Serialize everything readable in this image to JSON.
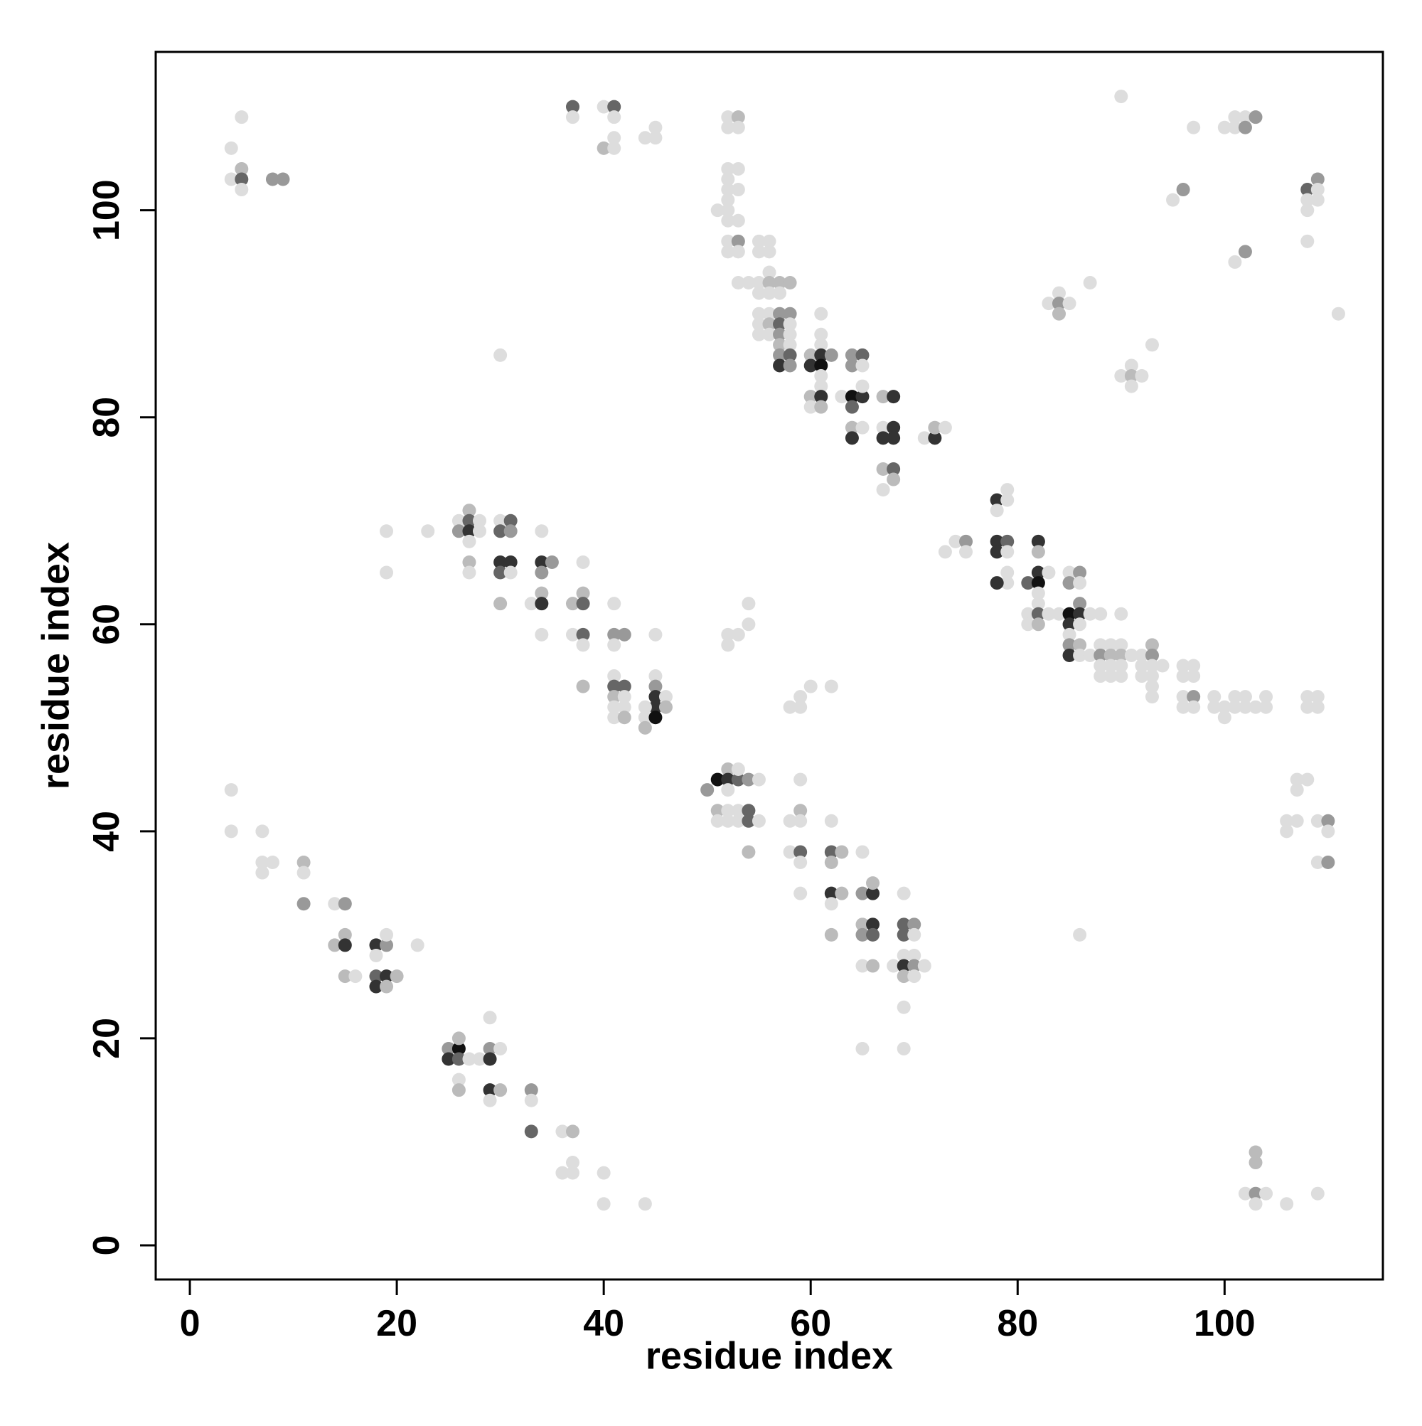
{
  "chart_data": {
    "type": "scatter",
    "xlabel": "residue index",
    "ylabel": "residue index",
    "xlim": [
      -3.3,
      115.3
    ],
    "ylim": [
      -3.3,
      115.3
    ],
    "xticks": [
      0,
      20,
      40,
      60,
      80,
      100
    ],
    "yticks": [
      0,
      20,
      40,
      60,
      80,
      100
    ],
    "x": [
      4,
      4,
      5,
      5,
      5,
      5,
      8,
      9,
      37,
      37,
      40,
      41,
      41,
      40,
      41,
      41,
      44,
      45,
      45,
      52,
      53,
      52,
      53,
      52,
      53,
      52,
      52,
      53,
      51,
      52,
      52,
      52,
      53,
      52,
      53,
      52,
      53,
      53,
      54,
      55,
      55,
      56,
      56,
      56,
      55,
      56,
      57,
      58,
      55,
      56,
      57,
      55,
      56,
      57,
      58,
      55,
      56,
      57,
      58,
      55,
      56,
      57,
      58,
      57,
      58,
      57,
      58,
      57,
      58,
      61,
      61,
      61,
      60,
      61,
      62,
      60,
      61,
      61,
      61,
      60,
      61,
      63,
      64,
      65,
      60,
      61,
      64,
      64,
      65,
      64,
      65,
      65,
      64,
      65,
      64,
      67,
      68,
      67,
      68,
      67,
      68,
      67,
      68,
      68,
      67,
      71,
      72,
      72,
      73,
      90,
      97,
      100,
      101,
      101,
      102,
      102,
      103,
      95,
      96,
      101,
      102,
      108,
      108,
      109,
      109,
      109,
      108,
      108,
      111,
      83,
      84,
      84,
      84,
      85,
      87,
      90,
      91,
      91,
      92,
      91,
      93,
      30,
      19,
      19,
      23,
      26,
      26,
      27,
      27,
      27,
      28,
      28,
      27,
      27,
      27,
      30,
      31,
      30,
      31,
      30,
      31,
      30,
      31,
      30,
      34,
      34,
      35,
      34,
      34,
      33,
      34,
      38,
      38,
      37,
      38,
      37,
      38,
      38,
      34,
      38,
      41,
      41,
      42,
      41,
      41,
      41,
      42,
      41,
      42,
      41,
      42,
      41,
      42,
      45,
      45,
      45,
      45,
      46,
      45,
      46,
      44,
      44,
      45,
      44,
      52,
      53,
      52,
      54,
      54,
      73,
      74,
      75,
      75,
      78,
      79,
      79,
      78,
      78,
      79,
      78,
      79,
      79,
      79,
      78,
      81,
      82,
      82,
      82,
      83,
      82,
      82,
      82,
      81,
      82,
      81,
      82,
      83,
      84,
      85,
      86,
      85,
      86,
      86,
      85,
      86,
      85,
      86,
      85,
      87,
      88,
      85,
      86,
      85,
      86,
      87,
      88,
      88,
      89,
      89,
      90,
      90,
      88,
      89,
      90,
      88,
      89,
      90,
      90,
      91,
      92,
      92,
      92,
      93,
      93,
      93,
      93,
      93,
      93,
      94,
      96,
      97,
      96,
      97,
      96,
      97,
      96,
      97,
      99,
      99,
      100,
      100,
      101,
      101,
      102,
      102,
      103,
      104,
      104,
      108,
      109,
      108,
      109,
      58,
      59,
      59,
      60,
      62,
      50,
      51,
      52,
      52,
      53,
      53,
      54,
      55,
      52,
      51,
      52,
      53,
      54,
      51,
      52,
      53,
      54,
      55,
      54,
      58,
      59,
      59,
      59,
      58,
      59,
      59,
      59,
      62,
      62,
      63,
      62,
      62,
      63,
      62,
      62,
      65,
      65,
      66,
      66,
      65,
      66,
      65,
      66,
      65,
      66,
      69,
      69,
      70,
      69,
      70,
      69,
      70,
      68,
      69,
      70,
      71,
      69,
      70,
      69,
      69,
      65,
      86,
      4,
      4,
      7,
      7,
      8,
      7,
      11,
      11,
      11,
      14,
      15,
      15,
      14,
      15,
      15,
      16,
      18,
      19,
      19,
      18,
      18,
      19,
      20,
      18,
      19,
      22,
      25,
      26,
      26,
      25,
      26,
      27,
      26,
      26,
      28,
      29,
      30,
      29,
      29,
      29,
      30,
      29,
      33,
      33,
      33,
      36,
      37,
      36,
      37,
      37,
      40,
      40,
      44,
      107,
      108,
      107,
      106,
      107,
      106,
      109,
      110,
      110,
      109,
      110,
      103,
      103,
      102,
      103,
      104,
      103,
      106,
      109
    ],
    "values": [
      106,
      103,
      104,
      103,
      102,
      109,
      103,
      103,
      110,
      109,
      110,
      110,
      109,
      106,
      107,
      106,
      107,
      108,
      107,
      109,
      109,
      108,
      108,
      104,
      104,
      103,
      102,
      102,
      100,
      100,
      101,
      99,
      99,
      97,
      97,
      96,
      96,
      93,
      93,
      96,
      97,
      97,
      96,
      94,
      93,
      93,
      93,
      93,
      92,
      92,
      92,
      90,
      90,
      90,
      90,
      89,
      89,
      89,
      89,
      88,
      88,
      88,
      88,
      87,
      87,
      86,
      86,
      85,
      85,
      90,
      88,
      87,
      86,
      86,
      86,
      85,
      85,
      84,
      83,
      82,
      82,
      82,
      82,
      82,
      81,
      81,
      81,
      86,
      86,
      85,
      85,
      83,
      79,
      79,
      78,
      82,
      82,
      79,
      79,
      78,
      78,
      75,
      75,
      74,
      73,
      78,
      78,
      79,
      79,
      111,
      108,
      108,
      109,
      108,
      109,
      108,
      109,
      101,
      102,
      95,
      96,
      102,
      101,
      103,
      102,
      101,
      100,
      97,
      90,
      91,
      92,
      91,
      90,
      91,
      93,
      84,
      85,
      84,
      84,
      83,
      87,
      86,
      69,
      65,
      69,
      70,
      69,
      71,
      70,
      69,
      70,
      69,
      68,
      66,
      65,
      70,
      70,
      69,
      69,
      66,
      66,
      65,
      65,
      62,
      69,
      66,
      66,
      65,
      63,
      62,
      62,
      66,
      63,
      62,
      62,
      59,
      59,
      58,
      59,
      54,
      62,
      59,
      59,
      58,
      55,
      54,
      54,
      53,
      53,
      52,
      52,
      51,
      51,
      59,
      55,
      54,
      53,
      53,
      52,
      52,
      52,
      51,
      51,
      50,
      59,
      59,
      58,
      62,
      60,
      67,
      68,
      68,
      67,
      72,
      73,
      72,
      71,
      68,
      68,
      67,
      67,
      65,
      64,
      64,
      64,
      68,
      67,
      65,
      65,
      64,
      63,
      62,
      61,
      61,
      60,
      60,
      61,
      61,
      65,
      65,
      64,
      64,
      62,
      61,
      61,
      60,
      60,
      59,
      61,
      61,
      58,
      58,
      57,
      57,
      57,
      58,
      57,
      58,
      57,
      58,
      57,
      56,
      56,
      56,
      55,
      55,
      55,
      61,
      57,
      57,
      56,
      55,
      58,
      57,
      56,
      55,
      54,
      53,
      56,
      56,
      56,
      55,
      55,
      53,
      53,
      52,
      52,
      53,
      52,
      52,
      51,
      53,
      52,
      53,
      52,
      52,
      53,
      52,
      53,
      53,
      52,
      52,
      52,
      53,
      52,
      54,
      54,
      44,
      45,
      46,
      45,
      45,
      46,
      45,
      45,
      44,
      42,
      42,
      42,
      42,
      41,
      41,
      41,
      41,
      41,
      38,
      41,
      42,
      41,
      45,
      38,
      38,
      37,
      34,
      41,
      38,
      38,
      37,
      34,
      34,
      33,
      30,
      38,
      34,
      34,
      35,
      31,
      31,
      30,
      30,
      27,
      27,
      34,
      31,
      31,
      30,
      30,
      28,
      28,
      27,
      27,
      27,
      27,
      26,
      26,
      23,
      19,
      19,
      30,
      44,
      40,
      40,
      37,
      37,
      36,
      37,
      36,
      33,
      33,
      33,
      30,
      29,
      29,
      26,
      26,
      29,
      29,
      30,
      28,
      26,
      26,
      26,
      25,
      25,
      29,
      19,
      19,
      20,
      18,
      18,
      18,
      16,
      15,
      18,
      19,
      19,
      18,
      22,
      15,
      15,
      14,
      15,
      14,
      11,
      11,
      11,
      7,
      7,
      8,
      7,
      4,
      4,
      45,
      45,
      44,
      41,
      41,
      40,
      41,
      41,
      40,
      37,
      37,
      9,
      8,
      5,
      5,
      5,
      4,
      4,
      5
    ],
    "colors": [
      "#ddd",
      "#ddd",
      "#bbb",
      "#666",
      "#ddd",
      "#ddd",
      "#999",
      "#999",
      "#666",
      "#ddd",
      "#ddd",
      "#666",
      "#ddd",
      "#bbb",
      "#ddd",
      "#ddd",
      "#ddd",
      "#ddd",
      "#ddd",
      "#ddd",
      "#bbb",
      "#ddd",
      "#ddd",
      "#ddd",
      "#ddd",
      "#ddd",
      "#ddd",
      "#ddd",
      "#ddd",
      "#ddd",
      "#ddd",
      "#ddd",
      "#ddd",
      "#ddd",
      "#999",
      "#ddd",
      "#ddd",
      "#ddd",
      "#ddd",
      "#ddd",
      "#ddd",
      "#ddd",
      "#ddd",
      "#ddd",
      "#ddd",
      "#bbb",
      "#bbb",
      "#bbb",
      "#ddd",
      "#ddd",
      "#ddd",
      "#ddd",
      "#ddd",
      "#999",
      "#999",
      "#ddd",
      "#bbb",
      "#666",
      "#ddd",
      "#ddd",
      "#ddd",
      "#999",
      "#ddd",
      "#bbb",
      "#ddd",
      "#999",
      "#666",
      "#333",
      "#999",
      "#ddd",
      "#ddd",
      "#ddd",
      "#bbb",
      "#333",
      "#999",
      "#333",
      "#111",
      "#ddd",
      "#ddd",
      "#bbb",
      "#333",
      "#ddd",
      "#111",
      "#333",
      "#ddd",
      "#bbb",
      "#666",
      "#999",
      "#666",
      "#999",
      "#ddd",
      "#ddd",
      "#bbb",
      "#ddd",
      "#333",
      "#bbb",
      "#333",
      "#ddd",
      "#333",
      "#333",
      "#333",
      "#bbb",
      "#666",
      "#bbb",
      "#ddd",
      "#ddd",
      "#333",
      "#bbb",
      "#ddd",
      "#ddd",
      "#ddd",
      "#ddd",
      "#ddd",
      "#ddd",
      "#ddd",
      "#999",
      "#999",
      "#ddd",
      "#999",
      "#ddd",
      "#999",
      "#666",
      "#ddd",
      "#999",
      "#ddd",
      "#ddd",
      "#ddd",
      "#ddd",
      "#ddd",
      "#ddd",
      "#ddd",
      "#999",
      "#bbb",
      "#ddd",
      "#ddd",
      "#ddd",
      "#ddd",
      "#bbb",
      "#ddd",
      "#ddd",
      "#ddd",
      "#ddd",
      "#ddd",
      "#ddd",
      "#ddd",
      "#ddd",
      "#999",
      "#bbb",
      "#666",
      "#333",
      "#ddd",
      "#ddd",
      "#ddd",
      "#bbb",
      "#ddd",
      "#ddd",
      "#666",
      "#666",
      "#999",
      "#333",
      "#333",
      "#666",
      "#ddd",
      "#bbb",
      "#ddd",
      "#333",
      "#999",
      "#999",
      "#bbb",
      "#ddd",
      "#333",
      "#ddd",
      "#bbb",
      "#bbb",
      "#666",
      "#ddd",
      "#666",
      "#ddd",
      "#ddd",
      "#bbb",
      "#ddd",
      "#999",
      "#999",
      "#ddd",
      "#ddd",
      "#666",
      "#666",
      "#bbb",
      "#ddd",
      "#ddd",
      "#ddd",
      "#ddd",
      "#bbb",
      "#ddd",
      "#ddd",
      "#999",
      "#333",
      "#ddd",
      "#333",
      "#bbb",
      "#ddd",
      "#ddd",
      "#111",
      "#bbb",
      "#ddd",
      "#ddd",
      "#ddd",
      "#ddd",
      "#ddd",
      "#ddd",
      "#ddd",
      "#999",
      "#ddd",
      "#333",
      "#ddd",
      "#ddd",
      "#ddd",
      "#333",
      "#666",
      "#333",
      "#ddd",
      "#ddd",
      "#ddd",
      "#333",
      "#666",
      "#333",
      "#bbb",
      "#333",
      "#ddd",
      "#111",
      "#ddd",
      "#ddd",
      "#ddd",
      "#666",
      "#ddd",
      "#bbb",
      "#ddd",
      "#ddd",
      "#ddd",
      "#999",
      "#999",
      "#ddd",
      "#999",
      "#111",
      "#333",
      "#333",
      "#ddd",
      "#ddd",
      "#ddd",
      "#ddd",
      "#999",
      "#bbb",
      "#333",
      "#ddd",
      "#ddd",
      "#ddd",
      "#999",
      "#ddd",
      "#bbb",
      "#ddd",
      "#bbb",
      "#ddd",
      "#ddd",
      "#ddd",
      "#ddd",
      "#ddd",
      "#ddd",
      "#ddd",
      "#ddd",
      "#ddd",
      "#ddd",
      "#ddd",
      "#bbb",
      "#999",
      "#ddd",
      "#ddd",
      "#ddd",
      "#ddd",
      "#ddd",
      "#ddd",
      "#ddd",
      "#ddd",
      "#ddd",
      "#ddd",
      "#999",
      "#ddd",
      "#ddd",
      "#ddd",
      "#ddd",
      "#ddd",
      "#ddd",
      "#ddd",
      "#ddd",
      "#ddd",
      "#ddd",
      "#ddd",
      "#ddd",
      "#ddd",
      "#ddd",
      "#ddd",
      "#ddd",
      "#ddd",
      "#ddd",
      "#ddd",
      "#ddd",
      "#ddd",
      "#ddd",
      "#999",
      "#111",
      "#bbb",
      "#333",
      "#666",
      "#ddd",
      "#999",
      "#ddd",
      "#ddd",
      "#bbb",
      "#ddd",
      "#ddd",
      "#666",
      "#ddd",
      "#ddd",
      "#ddd",
      "#666",
      "#ddd",
      "#bbb",
      "#ddd",
      "#bbb",
      "#ddd",
      "#ddd",
      "#ddd",
      "#666",
      "#ddd",
      "#ddd",
      "#ddd",
      "#666",
      "#bbb",
      "#bbb",
      "#333",
      "#bbb",
      "#ddd",
      "#bbb",
      "#ddd",
      "#999",
      "#333",
      "#bbb",
      "#bbb",
      "#333",
      "#999",
      "#666",
      "#ddd",
      "#bbb",
      "#ddd",
      "#666",
      "#999",
      "#666",
      "#ddd",
      "#ddd",
      "#ddd",
      "#ddd",
      "#333",
      "#999",
      "#ddd",
      "#bbb",
      "#ddd",
      "#ddd",
      "#ddd",
      "#ddd",
      "#ddd",
      "#ddd",
      "#ddd",
      "#ddd",
      "#ddd",
      "#ddd",
      "#ddd",
      "#bbb",
      "#ddd",
      "#999",
      "#ddd",
      "#999",
      "#bbb",
      "#bbb",
      "#333",
      "#bbb",
      "#ddd",
      "#333",
      "#999",
      "#ddd",
      "#ddd",
      "#666",
      "#333",
      "#bbb",
      "#333",
      "#bbb",
      "#ddd",
      "#999",
      "#111",
      "#bbb",
      "#333",
      "#666",
      "#ddd",
      "#ddd",
      "#bbb",
      "#ddd",
      "#999",
      "#ddd",
      "#333",
      "#ddd",
      "#333",
      "#bbb",
      "#ddd",
      "#999",
      "#ddd",
      "#666",
      "#ddd",
      "#bbb",
      "#ddd",
      "#ddd",
      "#ddd",
      "#ddd",
      "#ddd",
      "#ddd",
      "#ddd",
      "#ddd",
      "#ddd",
      "#ddd",
      "#ddd",
      "#ddd",
      "#ddd",
      "#999",
      "#ddd",
      "#ddd",
      "#999",
      "#bbb",
      "#bbb",
      "#ddd",
      "#999",
      "#ddd",
      "#ddd",
      "#ddd",
      "#ddd"
    ]
  }
}
